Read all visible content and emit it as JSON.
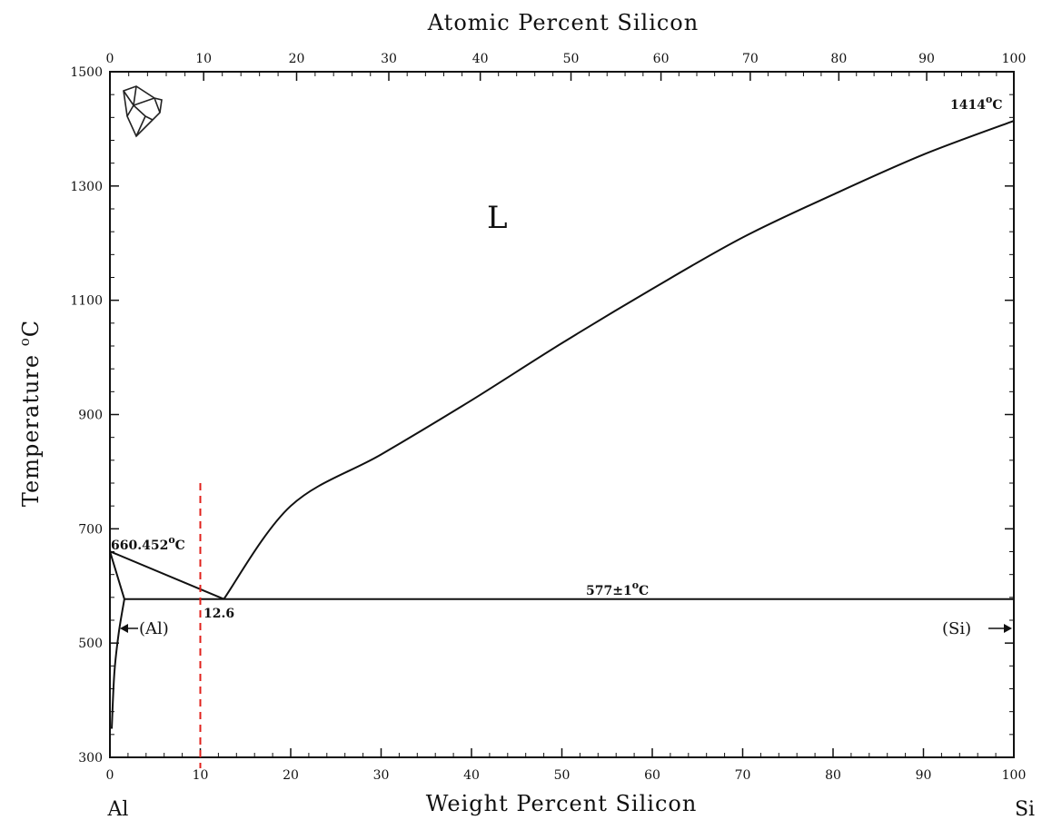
{
  "chart_data": {
    "type": "line",
    "title": "",
    "top_axis_label": "Atomic Percent Silicon",
    "xlabel": "Weight Percent Silicon",
    "ylabel": "Temperature °C",
    "ylabel_main": "Temperature ",
    "ylabel_sup": "o",
    "ylabel_unit": "C",
    "xlim": [
      0,
      100
    ],
    "ylim": [
      300,
      1500
    ],
    "x_ticks": [
      "0",
      "10",
      "20",
      "30",
      "40",
      "50",
      "60",
      "70",
      "80",
      "90",
      "100"
    ],
    "y_ticks": [
      "300",
      "500",
      "700",
      "900",
      "1100",
      "1300",
      "1500"
    ],
    "top_ticks": [
      "0",
      "10",
      "20",
      "30",
      "40",
      "50",
      "60",
      "70",
      "80",
      "90",
      "100"
    ],
    "grid": false,
    "left_element": "Al",
    "right_element": "Si",
    "series": [
      {
        "name": "",
        "x": [
          0,
          12.6
        ],
        "y": [
          660.452,
          577
        ],
        "points": [
          [
            0,
            660.452
          ],
          [
            12.6,
            577
          ]
        ]
      },
      {
        "name": "",
        "x": [
          12.6,
          20,
          30,
          40,
          50,
          60,
          70,
          80,
          90,
          100
        ],
        "y": [
          577,
          740,
          830,
          925,
          1025,
          1120,
          1210,
          1285,
          1355,
          1414
        ],
        "points": [
          [
            12.6,
            577
          ],
          [
            20,
            740
          ],
          [
            30,
            830
          ],
          [
            40,
            925
          ],
          [
            50,
            1025
          ],
          [
            60,
            1120
          ],
          [
            70,
            1210
          ],
          [
            80,
            1285
          ],
          [
            90,
            1355
          ],
          [
            100,
            1414
          ]
        ]
      },
      {
        "name": "",
        "x": [
          1.6,
          100
        ],
        "y": [
          577,
          577
        ],
        "points": [
          [
            1.6,
            577
          ],
          [
            100,
            577
          ]
        ]
      },
      {
        "name": "",
        "x": [
          0,
          1.6
        ],
        "y": [
          660.452,
          577
        ],
        "points": [
          [
            0,
            660.452
          ],
          [
            1.6,
            577
          ]
        ]
      },
      {
        "name": "",
        "x": [
          0.2,
          0.5,
          1.0,
          1.6
        ],
        "y": [
          350,
          450,
          520,
          577
        ],
        "points": [
          [
            0.2,
            350
          ],
          [
            0.5,
            450
          ],
          [
            1.0,
            520
          ],
          [
            1.6,
            577
          ]
        ]
      }
    ],
    "annotations": {
      "liquid": "L",
      "al_melting": "660.452°C",
      "al_melting_value": "660.452",
      "si_melting": "1414°C",
      "si_melting_value": "1414",
      "eutectic_temp": "577±1°C",
      "eutectic_temp_value": "577±1",
      "eutectic_comp": "12.6",
      "al_phase": "(Al)",
      "si_phase": "(Si)",
      "deg_o": "o",
      "deg_c": "C"
    },
    "marker_line": {
      "x": 10,
      "color": "#e0201b",
      "style": "dashed"
    }
  }
}
